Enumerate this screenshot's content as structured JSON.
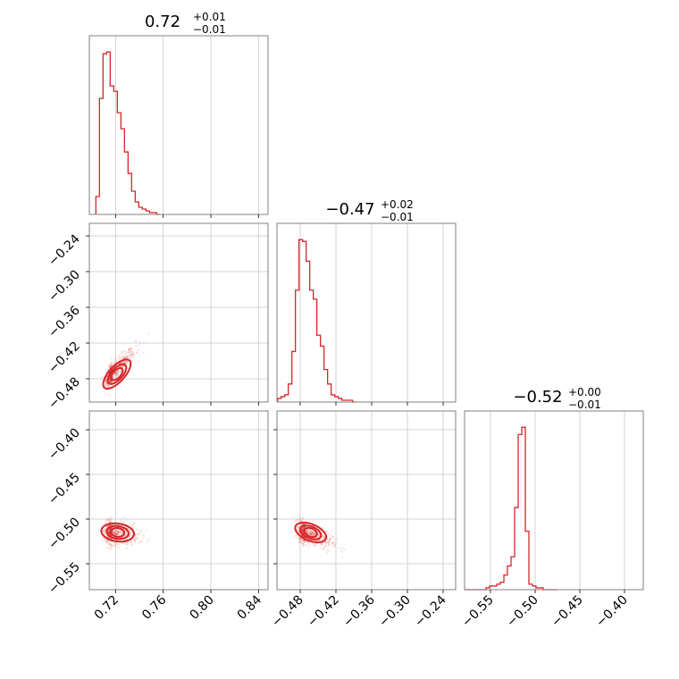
{
  "chart_data": {
    "type": "corner",
    "color": "#d62728",
    "panels": [
      {
        "id": "hist-0",
        "type": "histogram",
        "title": {
          "median": "0.72",
          "plus": "+0.01",
          "minus": "−0.01"
        },
        "xlim": [
          0.698,
          0.848
        ],
        "x": [
          0.705,
          0.708,
          0.711,
          0.714,
          0.717,
          0.72,
          0.723,
          0.726,
          0.729,
          0.732,
          0.735,
          0.738,
          0.741,
          0.744,
          0.747,
          0.75,
          0.753,
          0.756
        ],
        "y": [
          10,
          65,
          90,
          91,
          72,
          69,
          57,
          48,
          35,
          23,
          13,
          7,
          4,
          3,
          2,
          1,
          1,
          0
        ],
        "xticks": [
          0.72,
          0.76,
          0.8,
          0.84
        ],
        "xticklabels": [
          "0.72",
          "0.76",
          "0.80",
          "0.84"
        ]
      },
      {
        "id": "hist-1",
        "type": "histogram",
        "title": {
          "median": "−0.47",
          "plus": "+0.02",
          "minus": "−0.01"
        },
        "xlim": [
          -0.519,
          -0.219
        ],
        "x": [
          -0.515,
          -0.509,
          -0.503,
          -0.497,
          -0.491,
          -0.485,
          -0.479,
          -0.473,
          -0.467,
          -0.461,
          -0.455,
          -0.449,
          -0.443,
          -0.437,
          -0.431,
          -0.425,
          -0.419,
          -0.413,
          -0.407,
          -0.401,
          -0.395,
          -0.389
        ],
        "y": [
          2,
          3,
          4,
          10,
          28,
          62,
          90,
          89,
          78,
          62,
          57,
          37,
          31,
          18,
          10,
          4,
          3,
          2,
          1,
          1,
          1,
          0
        ],
        "xticks": [
          -0.48,
          -0.42,
          -0.36,
          -0.3,
          -0.24
        ],
        "xticklabels": [
          "−0.48",
          "−0.42",
          "−0.36",
          "−0.30",
          "−0.24"
        ]
      },
      {
        "id": "hist-2",
        "type": "histogram",
        "title": {
          "median": "−0.52",
          "plus": "+0.00",
          "minus": "−0.01"
        },
        "xlim": [
          -0.579,
          -0.379
        ],
        "x": [
          -0.577,
          -0.573,
          -0.569,
          -0.565,
          -0.561,
          -0.557,
          -0.553,
          -0.549,
          -0.545,
          -0.541,
          -0.537,
          -0.533,
          -0.529,
          -0.525,
          -0.521,
          -0.517,
          -0.513,
          -0.509,
          -0.505,
          -0.501,
          -0.497,
          -0.493,
          -0.489,
          -0.485,
          -0.481,
          -0.477
        ],
        "y": [
          0,
          0,
          0,
          0,
          0,
          0,
          1,
          2,
          2,
          3,
          4,
          8,
          13,
          18,
          45,
          85,
          89,
          32,
          3,
          2,
          1,
          1,
          0,
          0,
          0,
          0
        ],
        "xticks": [
          -0.55,
          -0.5,
          -0.45,
          -0.4
        ],
        "xticklabels": [
          "−0.55",
          "−0.50",
          "−0.45",
          "−0.40"
        ]
      },
      {
        "id": "scatter-1-0",
        "type": "scatter_contour",
        "xlim": [
          0.698,
          0.848
        ],
        "ylim": [
          -0.519,
          -0.219
        ],
        "xticks": [
          0.72,
          0.76,
          0.8,
          0.84
        ],
        "yticks": [
          -0.48,
          -0.42,
          -0.36,
          -0.3,
          -0.24
        ],
        "yticklabels": [
          "−0.48",
          "−0.42",
          "−0.36",
          "−0.30",
          "−0.24"
        ],
        "center": [
          0.717,
          -0.472
        ],
        "spread": [
          0.007,
          0.018
        ],
        "corr": 0.85
      },
      {
        "id": "scatter-2-0",
        "type": "scatter_contour",
        "xlim": [
          0.698,
          0.848
        ],
        "ylim": [
          -0.579,
          -0.379
        ],
        "xticks": [
          0.72,
          0.76,
          0.8,
          0.84
        ],
        "yticks": [
          -0.55,
          -0.5,
          -0.45,
          -0.4
        ],
        "yticklabels": [
          "−0.55",
          "−0.50",
          "−0.45",
          "−0.40"
        ],
        "center": [
          0.717,
          -0.515
        ],
        "spread": [
          0.008,
          0.007
        ],
        "corr": -0.2
      },
      {
        "id": "scatter-2-1",
        "type": "scatter_contour",
        "xlim": [
          -0.519,
          -0.219
        ],
        "ylim": [
          -0.579,
          -0.379
        ],
        "xticks": [
          -0.48,
          -0.42,
          -0.36,
          -0.3,
          -0.24
        ],
        "yticks": [
          -0.55,
          -0.5,
          -0.45,
          -0.4
        ],
        "center": [
          -0.472,
          -0.515
        ],
        "spread": [
          0.016,
          0.008
        ],
        "corr": -0.55
      }
    ]
  }
}
